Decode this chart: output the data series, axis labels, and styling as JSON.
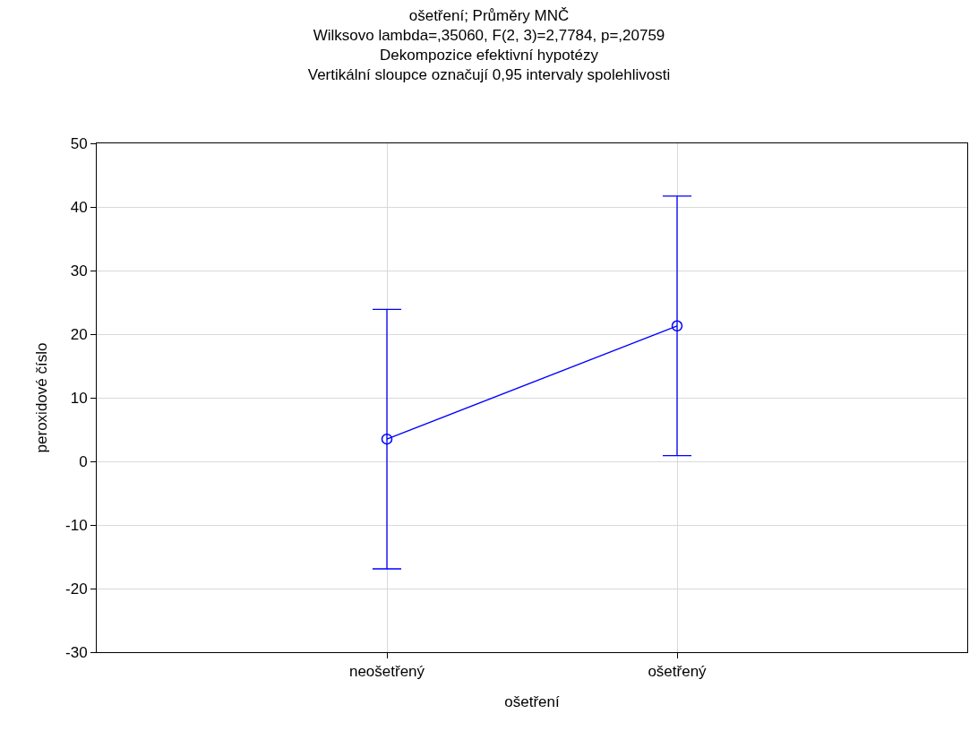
{
  "chart_data": {
    "type": "line",
    "title": "ošetření; Průměry MNČ\nWilksovo lambda=,35060, F(2, 3)=2,7784, p=,20759\nDekompozice efektivní hypotézy\nVertikální sloupce označují 0,95 intervaly spolehlivosti",
    "xlabel": "ošetření",
    "ylabel": "peroxidové číslo",
    "categories": [
      "neošetřený",
      "ošetřený"
    ],
    "series": [
      {
        "color": "#0000ff",
        "values": [
          3.5,
          21.3
        ],
        "errors": [
          20.4,
          20.4
        ]
      }
    ],
    "ylim": [
      -30,
      50
    ],
    "yticks": [
      -30,
      -20,
      -10,
      0,
      10,
      20,
      30,
      40,
      50
    ],
    "grid": true,
    "marker": "circle",
    "line_style": "solid"
  }
}
